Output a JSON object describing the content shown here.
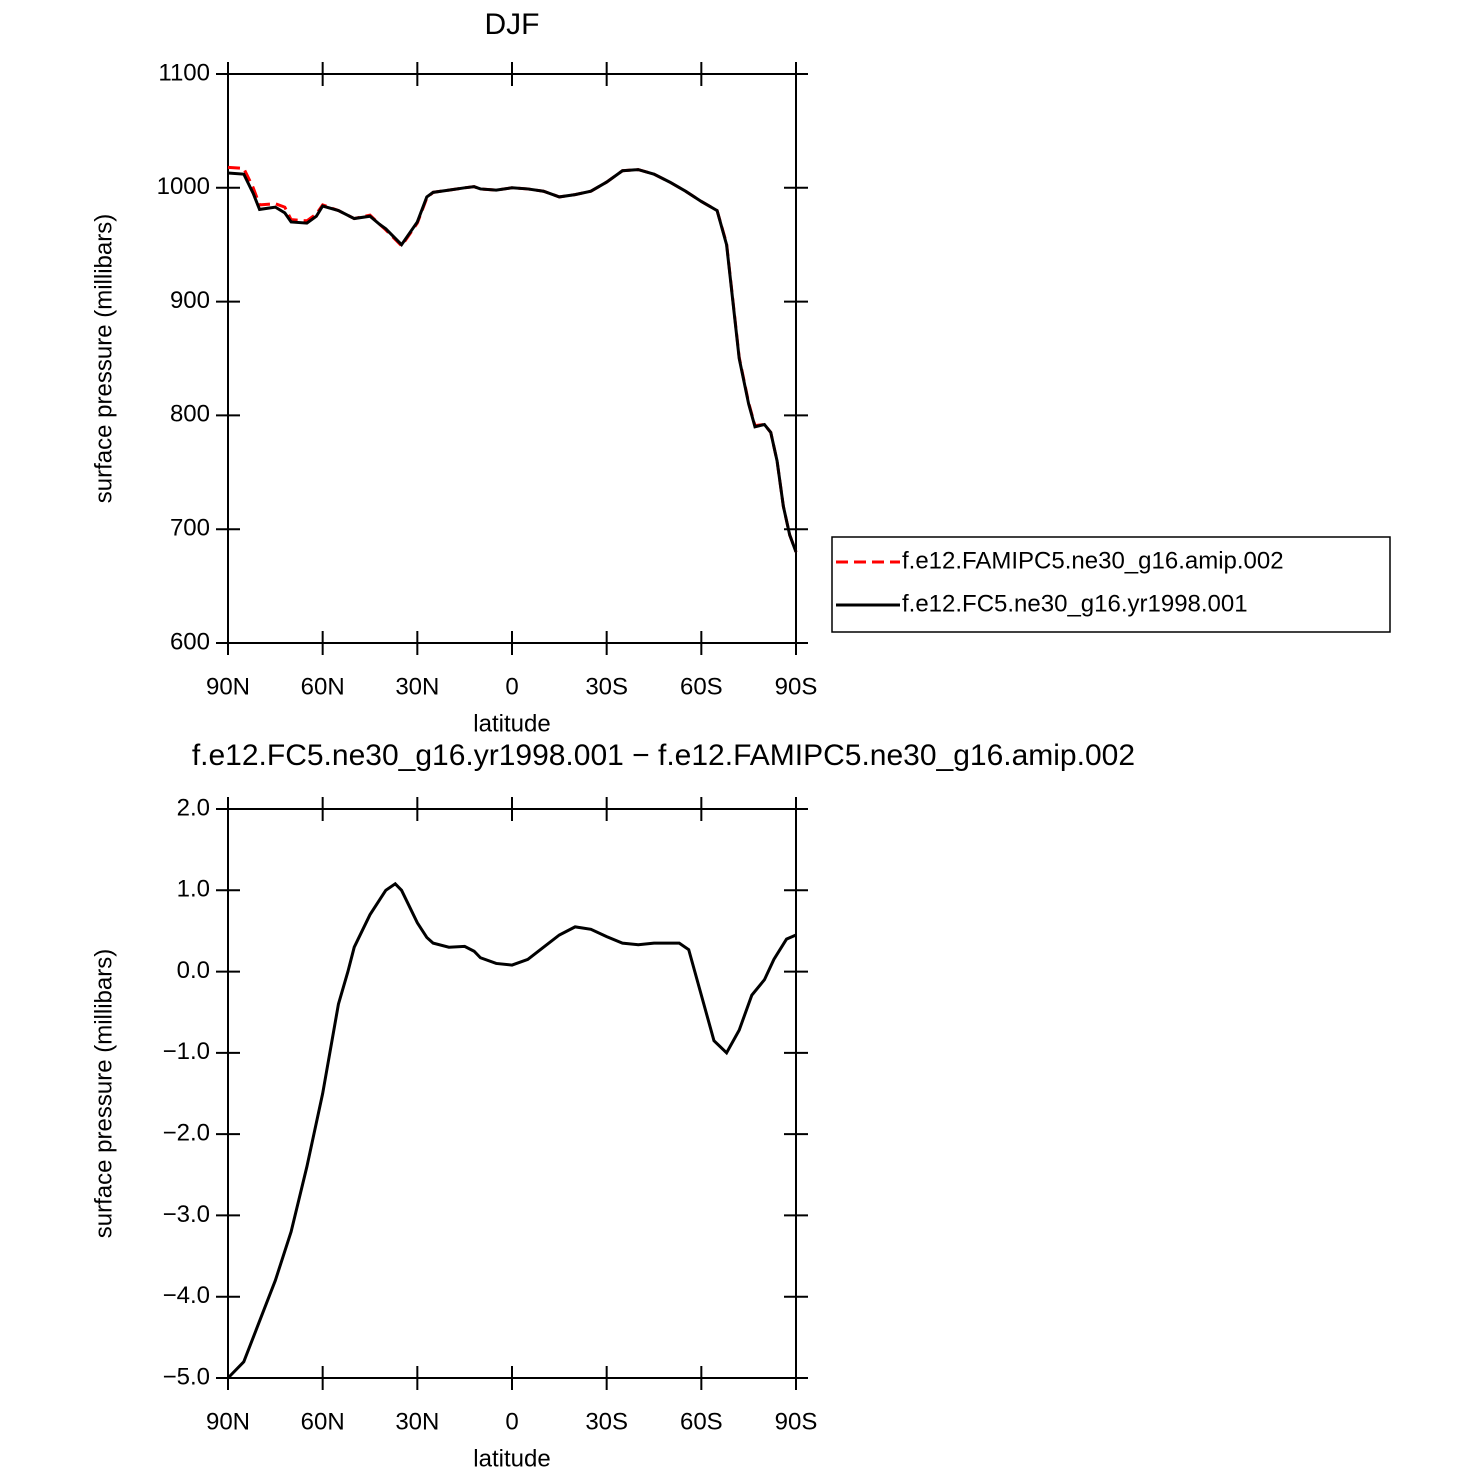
{
  "chart_data": [
    {
      "type": "line",
      "title": "DJF",
      "xlabel": "latitude",
      "ylabel": "surface pressure (millibars)",
      "x": [
        90,
        85,
        82,
        80,
        75,
        72,
        70,
        65,
        62,
        60,
        55,
        50,
        45,
        42,
        40,
        35,
        30,
        27,
        25,
        20,
        15,
        12,
        10,
        5,
        0,
        -5,
        -10,
        -15,
        -20,
        -25,
        -30,
        -35,
        -40,
        -45,
        -50,
        -55,
        -60,
        -65,
        -68,
        -70,
        -72,
        -75,
        -77,
        -80,
        -82,
        -84,
        -86,
        -88,
        -90
      ],
      "series": [
        {
          "name": "f.e12.FAMIPC5.ne30_g16.amip.002",
          "color": "#ff0000",
          "linestyle": "dashed",
          "values": [
            1018,
            1017,
            1000,
            985,
            986,
            983,
            972,
            971,
            977,
            985,
            980,
            973,
            976,
            968,
            963,
            949,
            969,
            991,
            996,
            998,
            1000,
            1001,
            999,
            998,
            1000,
            999,
            997,
            992,
            994,
            997,
            1005,
            1015,
            1016,
            1012,
            1005,
            997,
            988,
            980,
            951,
            901,
            851,
            811,
            791,
            792,
            785,
            760,
            720,
            695,
            680
          ]
        },
        {
          "name": "f.e12.FC5.ne30_g16.yr1998.001",
          "color": "#000000",
          "linestyle": "solid",
          "values": [
            1013,
            1012,
            995,
            981,
            983,
            978,
            970,
            969,
            975,
            984,
            980,
            973,
            975,
            968,
            964,
            950,
            970,
            992,
            996,
            998,
            1000,
            1001,
            999,
            998,
            1000,
            999,
            997,
            992,
            994,
            997,
            1005,
            1015,
            1016,
            1012,
            1005,
            997,
            988,
            980,
            950,
            900,
            850,
            810,
            790,
            792,
            785,
            760,
            720,
            695,
            680
          ]
        }
      ],
      "xlim": [
        90,
        -90
      ],
      "xticks": [
        {
          "value": 90,
          "label": "90N"
        },
        {
          "value": 60,
          "label": "60N"
        },
        {
          "value": 30,
          "label": "30N"
        },
        0,
        {
          "value": -30,
          "label": "30S"
        },
        {
          "value": -60,
          "label": "60S"
        },
        {
          "value": -90,
          "label": "90S"
        }
      ],
      "ylim": [
        600,
        1100
      ],
      "yticks": [
        600,
        700,
        800,
        900,
        1000,
        1100
      ],
      "legend": "right"
    },
    {
      "type": "line",
      "title": "f.e12.FC5.ne30_g16.yr1998.001 − f.e12.FAMIPC5.ne30_g16.amip.002",
      "xlabel": "latitude",
      "ylabel": "surface pressure (millibars)",
      "x": [
        90,
        85,
        80,
        77,
        75,
        70,
        65,
        60,
        55,
        52,
        50,
        45,
        40,
        37,
        35,
        30,
        27,
        25,
        20,
        15,
        12,
        10,
        5,
        0,
        -5,
        -10,
        -15,
        -20,
        -25,
        -30,
        -35,
        -40,
        -45,
        -50,
        -53,
        -56,
        -60,
        -64,
        -68,
        -72,
        -76,
        -80,
        -83,
        -87,
        -90
      ],
      "values": [
        -5.0,
        -4.8,
        -4.3,
        -4.0,
        -3.8,
        -3.2,
        -2.4,
        -1.5,
        -0.4,
        0.0,
        0.3,
        0.7,
        1.0,
        1.08,
        1.0,
        0.6,
        0.42,
        0.35,
        0.3,
        0.31,
        0.25,
        0.17,
        0.1,
        0.08,
        0.15,
        0.3,
        0.45,
        0.55,
        0.52,
        0.43,
        0.35,
        0.33,
        0.35,
        0.35,
        0.35,
        0.27,
        -0.29,
        -0.85,
        -1.0,
        -0.72,
        -0.29,
        -0.1,
        0.15,
        0.4,
        0.45
      ],
      "color": "#000000",
      "xlim": [
        90,
        -90
      ],
      "xticks": [
        {
          "value": 90,
          "label": "90N"
        },
        {
          "value": 60,
          "label": "60N"
        },
        {
          "value": 30,
          "label": "30N"
        },
        0,
        {
          "value": -30,
          "label": "30S"
        },
        {
          "value": -60,
          "label": "60S"
        },
        {
          "value": -90,
          "label": "90S"
        }
      ],
      "ylim": [
        -5,
        2
      ],
      "yticks": [
        {
          "value": -5,
          "label": "−5.0"
        },
        {
          "value": -4,
          "label": "−4.0"
        },
        {
          "value": -3,
          "label": "−3.0"
        },
        {
          "value": -2,
          "label": "−2.0"
        },
        {
          "value": -1,
          "label": "−1.0"
        },
        {
          "value": 0,
          "label": "0.0"
        },
        {
          "value": 1,
          "label": "1.0"
        },
        {
          "value": 2,
          "label": "2.0"
        }
      ]
    }
  ]
}
